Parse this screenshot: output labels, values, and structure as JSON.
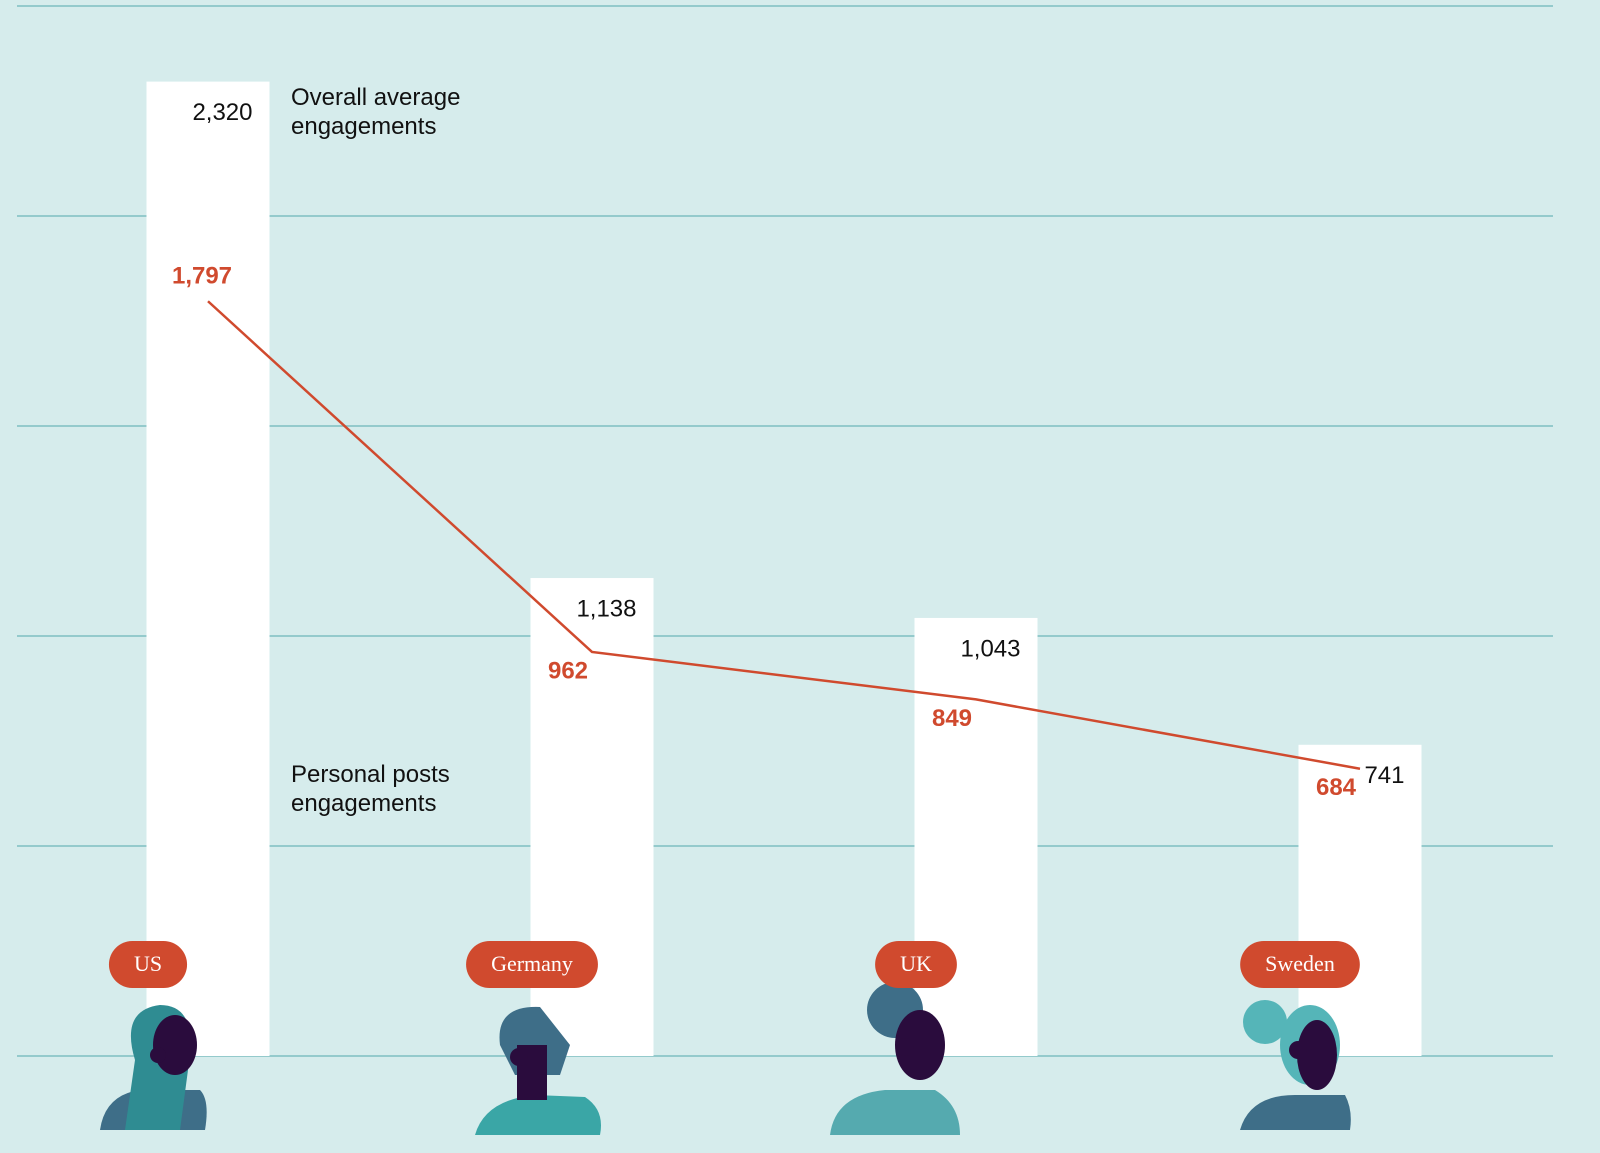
{
  "chart_data": {
    "type": "bar-line",
    "categories": [
      "US",
      "Germany",
      "UK",
      "Sweden"
    ],
    "series": [
      {
        "name": "Overall average engagements",
        "type": "bar",
        "color": "#ffffff",
        "label_color": "#111111",
        "values": [
          2320,
          1138,
          1043,
          741
        ],
        "value_labels": [
          "2,320",
          "1,138",
          "1,043",
          "741"
        ]
      },
      {
        "name": "Personal posts engagements",
        "type": "line",
        "color": "#d04a2e",
        "values": [
          1797,
          962,
          849,
          684
        ],
        "value_labels": [
          "1,797",
          "962",
          "849",
          "684"
        ]
      }
    ],
    "ylim": [
      0,
      2500
    ],
    "yticks": [
      0,
      500,
      1000,
      1500,
      2000,
      2500
    ],
    "grid": true
  }
}
